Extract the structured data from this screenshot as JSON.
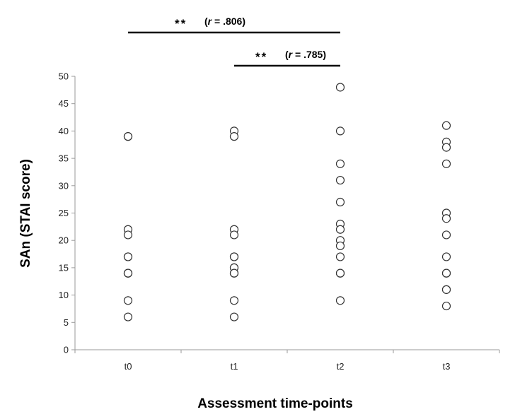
{
  "chart_data": {
    "type": "scatter",
    "title": "",
    "xlabel": "Assessment time-points",
    "ylabel": "SAn (STAI score)",
    "categories": [
      "t0",
      "t1",
      "t2",
      "t3"
    ],
    "ylim": [
      0,
      50
    ],
    "yticks": [
      0,
      5,
      10,
      15,
      20,
      25,
      30,
      35,
      40,
      45,
      50
    ],
    "grid": false,
    "legend": "none",
    "points": [
      [
        39,
        39,
        22,
        21,
        17,
        17,
        14,
        14,
        14,
        9,
        6
      ],
      [
        40,
        39,
        22,
        21,
        17,
        17,
        15,
        15,
        14,
        14,
        9,
        6
      ],
      [
        48,
        40,
        34,
        31,
        27,
        23,
        22,
        20,
        19,
        17,
        14,
        14,
        9
      ],
      [
        41,
        38,
        37,
        34,
        25,
        24,
        21,
        17,
        14,
        14,
        11,
        11,
        8
      ]
    ],
    "marker": {
      "shape": "open-circle",
      "stroke_color": "#333333",
      "fill": "#ffffff"
    },
    "significance": [
      {
        "from": "t0",
        "to": "t2",
        "stars": "**",
        "r_symbol": "r",
        "r_text": " = .806"
      },
      {
        "from": "t1",
        "to": "t2",
        "stars": "**",
        "r_symbol": "r",
        "r_text": " = .785"
      }
    ]
  }
}
